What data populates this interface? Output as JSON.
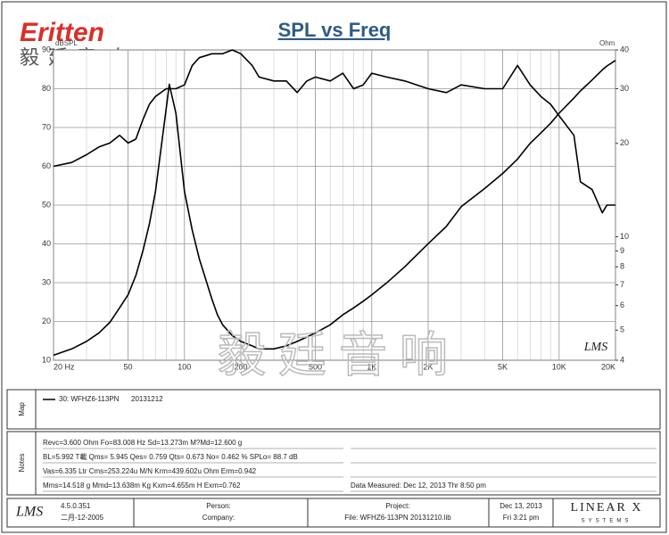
{
  "logo": {
    "brand": "Eritten",
    "chinese": "毅廷音响"
  },
  "chart_data": {
    "type": "line",
    "title": "SPL vs Freq",
    "y_label": "dBSPL",
    "y2_label": "Ohm",
    "log_x": true,
    "y2_log": true,
    "grid": true,
    "x": [
      20,
      25,
      30,
      35,
      40,
      45,
      50,
      55,
      60,
      65,
      70,
      80,
      83,
      90,
      100,
      110,
      120,
      140,
      150,
      160,
      180,
      200,
      230,
      250,
      300,
      350,
      400,
      450,
      500,
      600,
      700,
      800,
      900,
      1000,
      1200,
      1500,
      2000,
      2500,
      3000,
      4000,
      5000,
      6000,
      7000,
      8000,
      9000,
      10000,
      12000,
      13000,
      15000,
      17000,
      18000,
      20000
    ],
    "xlim": [
      20,
      20000
    ],
    "xticks": [
      {
        "value": 20,
        "label": "20 Hz"
      },
      50,
      100,
      200,
      500,
      {
        "value": 1000,
        "label": "1K"
      },
      {
        "value": 2000,
        "label": "2K"
      },
      {
        "value": 5000,
        "label": "5K"
      },
      {
        "value": 10000,
        "label": "10K"
      },
      {
        "value": 20000,
        "label": "20K"
      }
    ],
    "ylim": [
      10,
      90
    ],
    "yticks": [
      10,
      20,
      30,
      40,
      50,
      60,
      70,
      80,
      90
    ],
    "y2lim": [
      4,
      40
    ],
    "y2ticks": [
      4,
      5,
      6,
      7,
      8,
      9,
      10,
      20,
      30,
      40
    ],
    "series": [
      {
        "color": "#000000",
        "values": [
          60,
          61,
          63,
          65,
          66,
          68,
          66,
          67,
          72,
          76,
          78,
          80,
          80,
          80,
          81,
          86,
          88,
          89,
          89,
          89,
          90,
          89,
          86,
          83,
          82,
          82,
          79,
          82,
          83,
          82,
          84,
          80,
          81,
          84,
          83,
          82,
          80,
          79,
          81,
          80,
          80,
          86,
          81,
          78,
          76,
          73,
          68,
          56,
          54,
          48,
          50,
          50
        ]
      },
      {
        "color": "#000000",
        "axis": "y2",
        "values": [
          4.15,
          4.35,
          4.6,
          4.9,
          5.3,
          5.9,
          6.5,
          7.5,
          9,
          11,
          14,
          26,
          31,
          25,
          14,
          10.5,
          8.5,
          6.3,
          5.6,
          5.2,
          4.8,
          4.6,
          4.45,
          4.35,
          4.35,
          4.45,
          4.6,
          4.75,
          4.9,
          5.2,
          5.6,
          5.9,
          6.2,
          6.5,
          7.1,
          8,
          9.5,
          10.8,
          12.5,
          14.3,
          16,
          17.8,
          20,
          21.6,
          23.2,
          25,
          28,
          29.5,
          32,
          34.5,
          35.5,
          37
        ]
      }
    ],
    "legend": {
      "name": "30: WFHZ6-113PN",
      "date": "20131212"
    },
    "watermark": {
      "logo": "LMS",
      "text": "毅廷音响"
    }
  },
  "panels": {
    "map_label": "Map",
    "notes_label": "Notes",
    "notes": [
      "Revc=3.600 Ohm  Fo=83.008 Hz  Sd=13.273m M?Md=12.600 g",
      "BL=5.992 T載  Qms= 5.945  Qes= 0.759  Qts= 0.673  No= 0.462 %  SPLo= 88.7 dB",
      "Vas=6.335 Ltr  Cms=253.224u M/N  Krm=439.602u Ohm  Erm=0.942",
      "Mms=14.518 g  Mmd=13.638m Kg  Kxm=4.655m H  Exm=0.762"
    ],
    "measured": "Data Measured: Dec 12, 2013  Thr  8:50 pm"
  },
  "footer": {
    "logo": "LMS",
    "version": "4.5.0.351",
    "build_date": "二月-12-2005",
    "person": "Person:",
    "company": "Company:",
    "project": "Project:",
    "file": "File: WFHZ6-113PN 20131210.lib",
    "date": "Dec 13, 2013",
    "time": "Fri  3:21 pm",
    "brand": "LINEAR X",
    "brand_sub": "SYSTEMS"
  }
}
